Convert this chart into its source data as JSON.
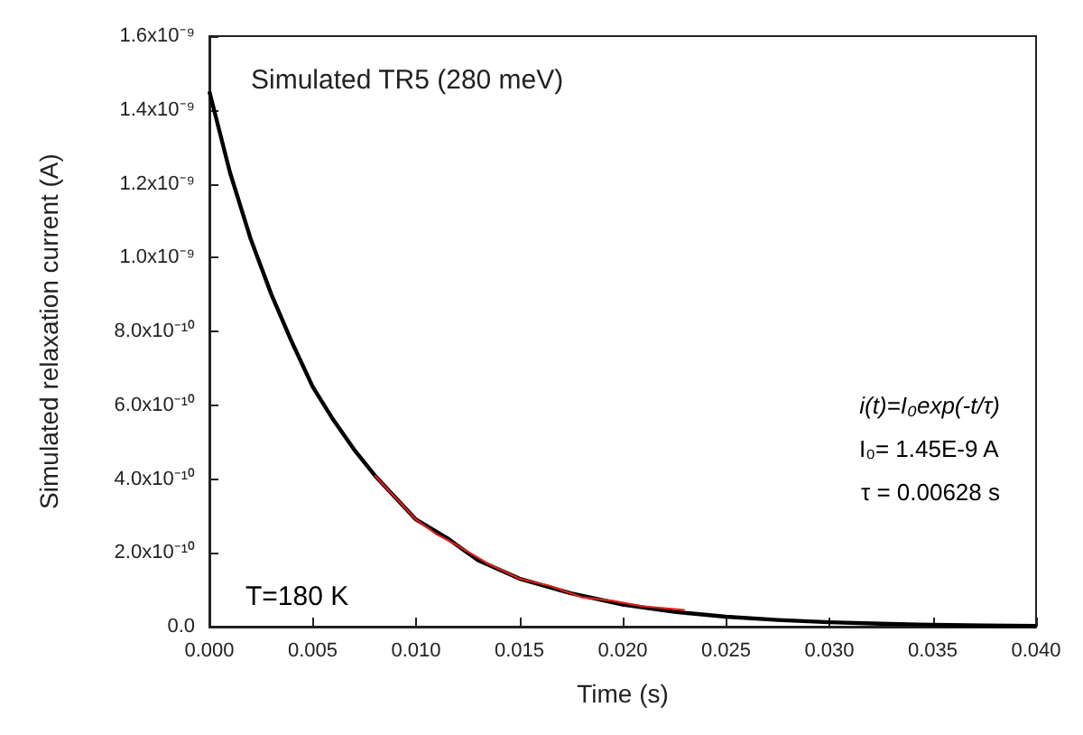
{
  "chart_data": {
    "type": "line",
    "title": "Simulated TR5 (280 meV)",
    "xlabel": "Time (s)",
    "ylabel": "Simulated relaxation current (A)",
    "xlim": [
      0,
      0.04
    ],
    "xticks": [
      {
        "value": 0,
        "label": "0.000"
      },
      {
        "value": 0.005,
        "label": "0.005"
      },
      {
        "value": 0.01,
        "label": "0.010"
      },
      {
        "value": 0.015,
        "label": "0.015"
      },
      {
        "value": 0.02,
        "label": "0.020"
      },
      {
        "value": 0.025,
        "label": "0.025"
      },
      {
        "value": 0.03,
        "label": "0.030"
      },
      {
        "value": 0.035,
        "label": "0.035"
      },
      {
        "value": 0.04,
        "label": "0.040"
      }
    ],
    "ylim": [
      0,
      1.6e-09
    ],
    "yticks": [
      {
        "value": 0,
        "label": "0.0"
      },
      {
        "value": 2e-10,
        "label": "2.0x10⁻¹⁰"
      },
      {
        "value": 4e-10,
        "label": "4.0x10⁻¹⁰"
      },
      {
        "value": 6e-10,
        "label": "6.0x10⁻¹⁰"
      },
      {
        "value": 8e-10,
        "label": "8.0x10⁻¹⁰"
      },
      {
        "value": 1e-09,
        "label": "1.0x10⁻⁹"
      },
      {
        "value": 1.2e-09,
        "label": "1.2x10⁻⁹"
      },
      {
        "value": 1.4e-09,
        "label": "1.4x10⁻⁹"
      },
      {
        "value": 1.6e-09,
        "label": "1.6x10⁻⁹"
      }
    ],
    "series": [
      {
        "color": "#000000",
        "x": [
          0,
          0.001,
          0.002,
          0.003,
          0.004,
          0.005,
          0.006,
          0.007,
          0.008,
          0.009,
          0.01,
          0.0115,
          0.013,
          0.015,
          0.0175,
          0.02,
          0.0225,
          0.025,
          0.0275,
          0.03,
          0.0325,
          0.035,
          0.0375,
          0.04
        ],
        "values": [
          1.45e-09,
          1.23e-09,
          1.05e-09,
          9e-10,
          7.7e-10,
          6.5e-10,
          5.6e-10,
          4.8e-10,
          4.1e-10,
          3.5e-10,
          2.9e-10,
          2.4e-10,
          1.8e-10,
          1.3e-10,
          9e-11,
          6e-11,
          4e-11,
          2.7e-11,
          1.8e-11,
          1.2e-11,
          8e-12,
          5e-12,
          3e-12,
          2e-12
        ]
      },
      {
        "color": "#e0201b",
        "x": [
          0.008,
          0.009,
          0.01,
          0.011,
          0.012,
          0.0135,
          0.015,
          0.0165,
          0.018,
          0.0195,
          0.021,
          0.023
        ],
        "values": [
          4.1e-10,
          3.5e-10,
          2.9e-10,
          2.5e-10,
          2.2e-10,
          1.7e-10,
          1.3e-10,
          1.1e-10,
          8e-11,
          7e-11,
          5.5e-11,
          4.5e-11
        ]
      }
    ],
    "annotations": [
      "T=180 K",
      "i(t)=I₀exp(-t/τ)",
      "I₀= 1.45E-9 A",
      "τ = 0.00628 s"
    ],
    "grid": false,
    "marker": "none",
    "line_style": "solid"
  }
}
